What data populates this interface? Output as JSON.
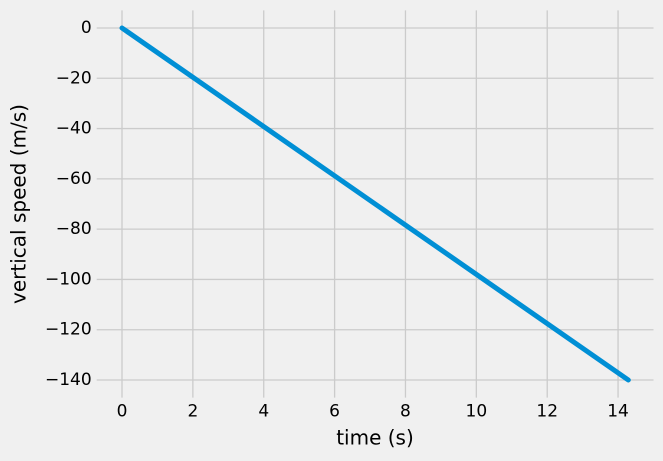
{
  "chart_data": {
    "type": "line",
    "x_label": "time (s)",
    "y_label": "vertical speed (m/s)",
    "x": [
      0,
      14.29
    ],
    "series": [
      {
        "color": "#008fd5",
        "values": [
          0,
          -140
        ]
      }
    ],
    "xlim": [
      -0.714,
      15.0
    ],
    "ylim": [
      -147,
      7
    ],
    "xticks": [
      0,
      2,
      4,
      6,
      8,
      10,
      12,
      14
    ],
    "yticks": [
      {
        "value": 0,
        "label": "0"
      },
      {
        "value": -20,
        "label": "−20"
      },
      {
        "value": -40,
        "label": "−40"
      },
      {
        "value": -60,
        "label": "−60"
      },
      {
        "value": -80,
        "label": "−80"
      },
      {
        "value": -100,
        "label": "−100"
      },
      {
        "value": -120,
        "label": "−120"
      },
      {
        "value": -140,
        "label": "−140"
      }
    ],
    "grid": true
  }
}
